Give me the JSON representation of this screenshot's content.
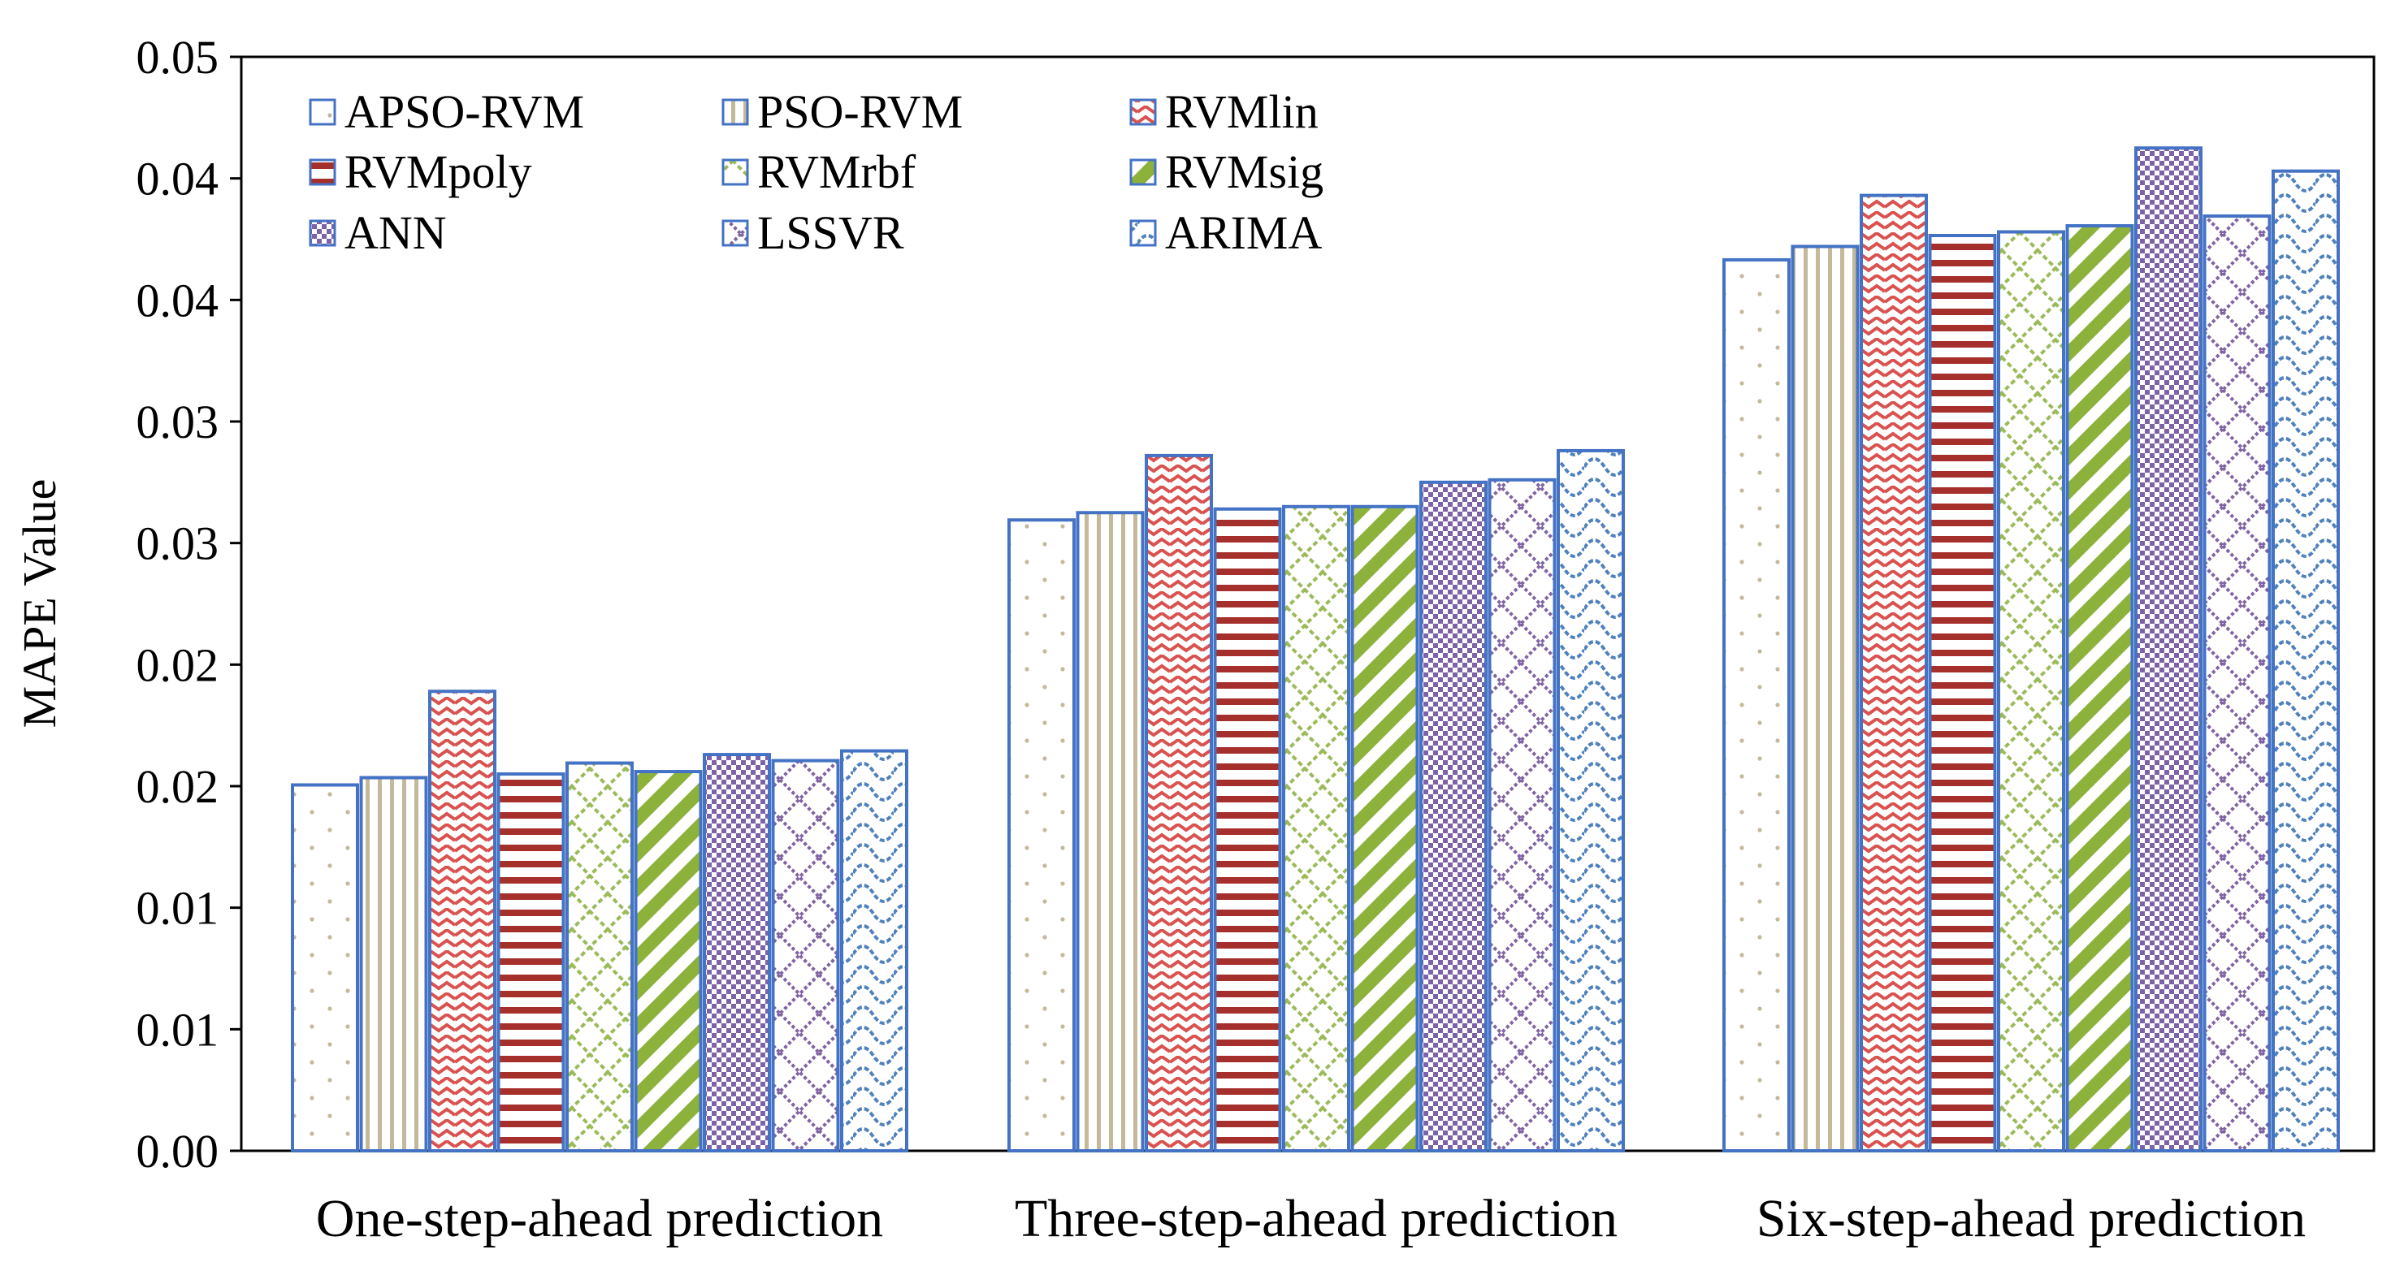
{
  "chart_data": {
    "type": "bar",
    "title": "",
    "xlabel": "",
    "ylabel": "MAPE Value",
    "ylim": [
      0,
      0.045
    ],
    "ytick_labels": [
      "0.00",
      "0.01",
      "0.01",
      "0.02",
      "0.02",
      "0.03",
      "0.03",
      "0.04",
      "0.04",
      "0.05"
    ],
    "grid": false,
    "legend_position": "top-left",
    "categories": [
      "One-step-ahead prediction",
      "Three-step-ahead prediction",
      "Six-step-ahead prediction"
    ],
    "series": [
      {
        "name": "APSO-RVM",
        "values": [
          0.01505,
          0.02595,
          0.03665
        ],
        "color": "#4472C4",
        "pattern": "dots"
      },
      {
        "name": "PSO-RVM",
        "values": [
          0.01535,
          0.02625,
          0.0372
        ],
        "color": "#C4B99A",
        "pattern": "vertical"
      },
      {
        "name": "RVMlin",
        "values": [
          0.0189,
          0.0286,
          0.0393
        ],
        "color": "#D9524F",
        "pattern": "waves"
      },
      {
        "name": "RVMpoly",
        "values": [
          0.0155,
          0.0264,
          0.03765
        ],
        "color": "#A5302B",
        "pattern": "horizontal"
      },
      {
        "name": "RVMrbf",
        "values": [
          0.01595,
          0.0265,
          0.0378
        ],
        "color": "#9BBB59",
        "pattern": "diamond-grid"
      },
      {
        "name": "RVMsig",
        "values": [
          0.0156,
          0.0265,
          0.03805
        ],
        "color": "#8CB23C",
        "pattern": "diagonal"
      },
      {
        "name": "ANN",
        "values": [
          0.0163,
          0.0275,
          0.04125
        ],
        "color": "#7E62A8",
        "pattern": "checker"
      },
      {
        "name": "LSSVR",
        "values": [
          0.01605,
          0.0276,
          0.03845
        ],
        "color": "#8064A2",
        "pattern": "lattice"
      },
      {
        "name": "ARIMA",
        "values": [
          0.01645,
          0.0288,
          0.0403
        ],
        "color": "#4F81BD",
        "pattern": "scales"
      }
    ]
  }
}
